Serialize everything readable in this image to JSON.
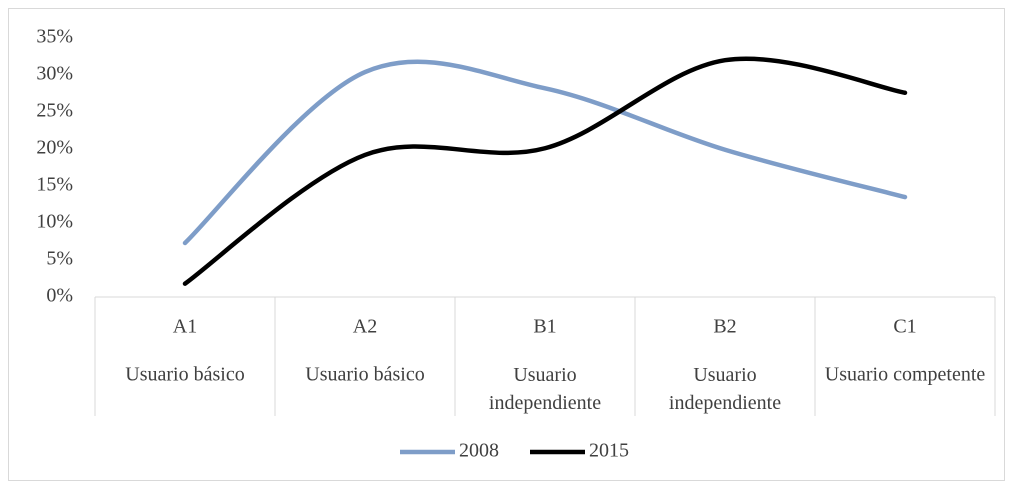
{
  "chart_data": {
    "type": "line",
    "categories": [
      [
        "A1",
        "Usuario básico"
      ],
      [
        "A2",
        "Usuario básico"
      ],
      [
        "B1",
        "Usuario independiente"
      ],
      [
        "B2",
        "Usuario independiente"
      ],
      [
        "C1",
        "Usuario competente"
      ]
    ],
    "series": [
      {
        "name": "2008",
        "color": "#7e9dc8",
        "values": [
          7.3,
          30.4,
          28.2,
          19.9,
          13.5
        ]
      },
      {
        "name": "2015",
        "color": "#000000",
        "values": [
          1.8,
          19.2,
          20.1,
          32,
          27.6
        ]
      }
    ],
    "ylim": [
      0,
      35
    ],
    "yticks": [
      {
        "value": 0,
        "label": "0%"
      },
      {
        "value": 5,
        "label": "5%"
      },
      {
        "value": 10,
        "label": "10%"
      },
      {
        "value": 15,
        "label": "15%"
      },
      {
        "value": 20,
        "label": "20%"
      },
      {
        "value": 25,
        "label": "25%"
      },
      {
        "value": 30,
        "label": "30%"
      },
      {
        "value": 35,
        "label": "35%"
      }
    ],
    "grid": false,
    "smooth": true,
    "legend": "bottom"
  }
}
